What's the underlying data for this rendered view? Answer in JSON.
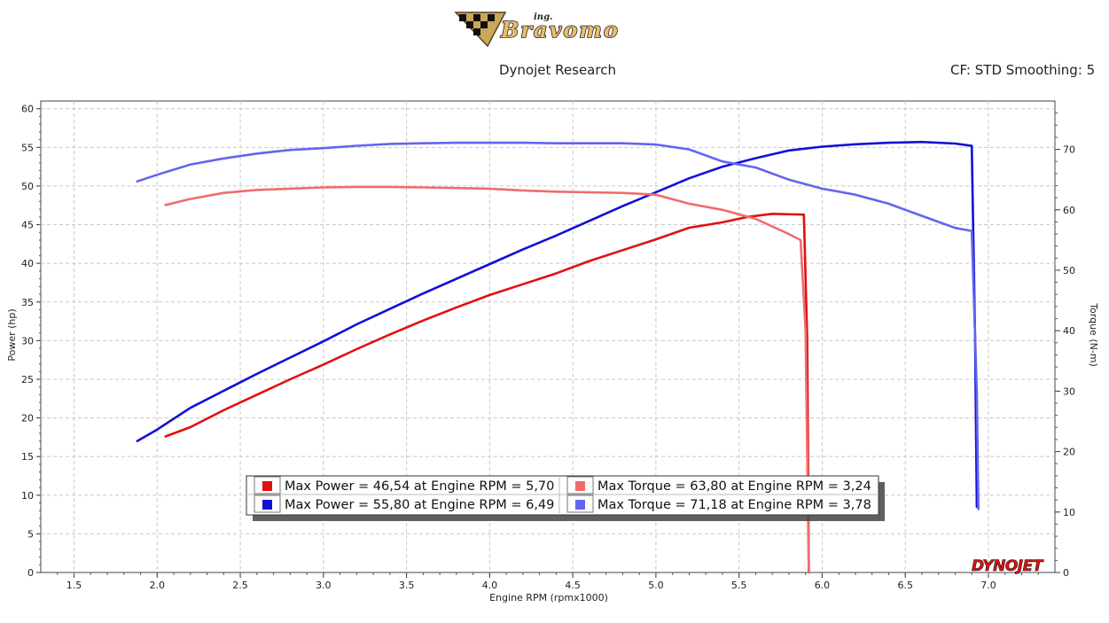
{
  "header": {
    "logo_small": "ing.",
    "logo_text": "Bravomo",
    "title": "Dynojet Research",
    "cf_label": "CF: STD Smoothing: 5",
    "brand": "DYNOJET"
  },
  "colors": {
    "power_red": "#e01010",
    "torque_red": "#f06c6c",
    "power_blue": "#1010d8",
    "torque_blue": "#6464f0"
  },
  "chart_data": {
    "type": "line",
    "xlabel": "Engine RPM (rpmx1000)",
    "ylabel": "Power (hp)",
    "y2label": "Torque (N-m)",
    "xlim": [
      1.3,
      7.4
    ],
    "ylim": [
      0,
      61
    ],
    "y2lim": [
      0,
      78
    ],
    "x_ticks": [
      "1.5",
      "2.0",
      "2.5",
      "3.0",
      "3.5",
      "4.0",
      "4.5",
      "5.0",
      "5.5",
      "6.0",
      "6.5",
      "7.0"
    ],
    "y_ticks": [
      "0",
      "5",
      "10",
      "15",
      "20",
      "25",
      "30",
      "35",
      "40",
      "45",
      "50",
      "55",
      "60"
    ],
    "y2_ticks": [
      "0",
      "10",
      "20",
      "30",
      "40",
      "50",
      "60",
      "70"
    ],
    "grid": true,
    "series": [
      {
        "axis": "left",
        "color": "#e01010",
        "x": [
          2.05,
          2.2,
          2.4,
          2.6,
          2.8,
          3.0,
          3.2,
          3.4,
          3.6,
          3.8,
          4.0,
          4.2,
          4.4,
          4.6,
          4.8,
          5.0,
          5.2,
          5.4,
          5.55,
          5.7,
          5.89,
          5.91,
          5.92
        ],
        "y": [
          17.6,
          18.8,
          21.0,
          23.0,
          25.0,
          26.9,
          28.9,
          30.8,
          32.6,
          34.3,
          35.9,
          37.3,
          38.7,
          40.3,
          41.7,
          43.1,
          44.6,
          45.3,
          46.0,
          46.4,
          46.3,
          30.0,
          0.0
        ]
      },
      {
        "axis": "left",
        "color": "#1010d8",
        "x": [
          1.88,
          2.0,
          2.2,
          2.4,
          2.6,
          2.8,
          3.0,
          3.2,
          3.4,
          3.6,
          3.8,
          4.0,
          4.2,
          4.4,
          4.6,
          4.8,
          5.0,
          5.2,
          5.4,
          5.6,
          5.8,
          6.0,
          6.2,
          6.4,
          6.6,
          6.8,
          6.9,
          6.92,
          6.93
        ],
        "y": [
          17.0,
          18.5,
          21.3,
          23.5,
          25.7,
          27.8,
          29.9,
          32.1,
          34.1,
          36.1,
          38.0,
          39.9,
          41.8,
          43.6,
          45.5,
          47.4,
          49.2,
          51.0,
          52.5,
          53.6,
          54.6,
          55.1,
          55.4,
          55.6,
          55.7,
          55.5,
          55.2,
          30.0,
          8.5
        ]
      },
      {
        "axis": "right",
        "color": "#f06c6c",
        "x": [
          2.05,
          2.2,
          2.4,
          2.6,
          2.8,
          3.0,
          3.2,
          3.4,
          3.6,
          3.8,
          4.0,
          4.2,
          4.4,
          4.6,
          4.8,
          5.0,
          5.2,
          5.4,
          5.6,
          5.8,
          5.87,
          5.9,
          5.92
        ],
        "y": [
          60.8,
          61.8,
          62.8,
          63.3,
          63.5,
          63.7,
          63.8,
          63.8,
          63.7,
          63.6,
          63.5,
          63.2,
          63.0,
          62.9,
          62.8,
          62.5,
          61.0,
          60.0,
          58.5,
          56.0,
          55.0,
          40.0,
          0.0
        ]
      },
      {
        "axis": "right",
        "color": "#6464f0",
        "x": [
          1.88,
          2.0,
          2.2,
          2.4,
          2.6,
          2.8,
          3.0,
          3.2,
          3.4,
          3.6,
          3.8,
          4.0,
          4.2,
          4.4,
          4.6,
          4.8,
          5.0,
          5.2,
          5.4,
          5.6,
          5.8,
          6.0,
          6.2,
          6.4,
          6.6,
          6.8,
          6.9,
          6.93,
          6.94
        ],
        "y": [
          64.7,
          65.8,
          67.5,
          68.5,
          69.3,
          69.9,
          70.2,
          70.6,
          70.9,
          71.0,
          71.1,
          71.1,
          71.1,
          71.0,
          71.0,
          71.0,
          70.8,
          70.0,
          68.0,
          67.0,
          65.0,
          63.5,
          62.5,
          61.0,
          59.0,
          57.0,
          56.5,
          30.0,
          10.5
        ]
      }
    ],
    "legend": {
      "placement": "bottom-center",
      "entries": [
        {
          "color": "#e01010",
          "text": "Max Power = 46,54 at Engine RPM = 5,70"
        },
        {
          "color": "#f06c6c",
          "text": "Max Torque = 63,80 at Engine RPM = 3,24"
        },
        {
          "color": "#1010d8",
          "text": "Max Power = 55,80 at Engine RPM = 6,49"
        },
        {
          "color": "#6464f0",
          "text": "Max Torque = 71,18 at Engine RPM = 3,78"
        }
      ]
    }
  }
}
